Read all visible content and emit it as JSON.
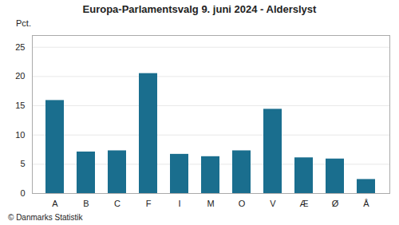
{
  "chart_data": {
    "type": "bar",
    "title": "Europa-Parlamentsvalg 9. juni 2024 - Alderslyst",
    "ylabel": "Pct.",
    "footer": "© Danmarks Statistik",
    "categories": [
      "A",
      "B",
      "C",
      "F",
      "I",
      "M",
      "O",
      "V",
      "Æ",
      "Ø",
      "Å"
    ],
    "values": [
      15.9,
      7.1,
      7.3,
      20.5,
      6.7,
      6.3,
      7.3,
      14.4,
      6.1,
      5.9,
      2.4
    ],
    "color": "#1a6e8e",
    "ylim": [
      0,
      27
    ],
    "yticks": [
      0,
      5,
      10,
      15,
      20,
      25
    ],
    "grid": true
  }
}
